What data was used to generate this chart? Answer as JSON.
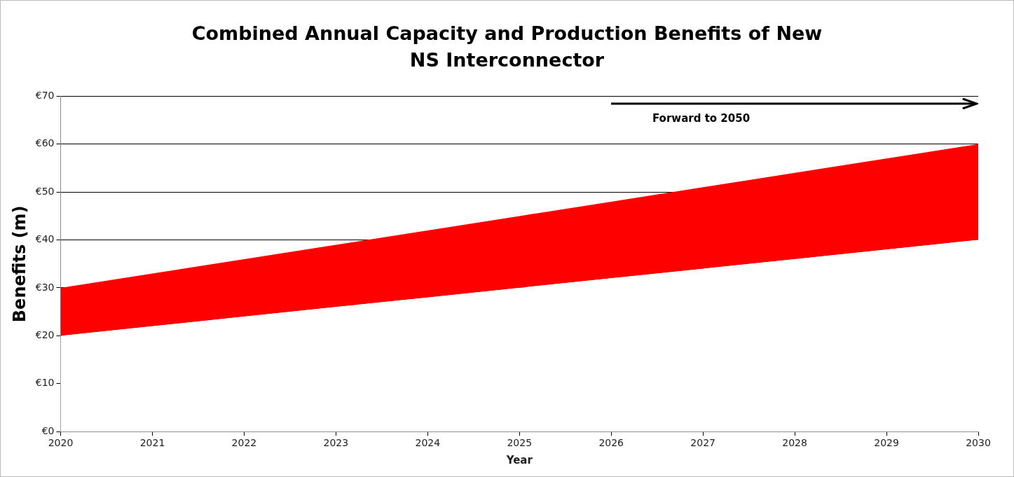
{
  "chart_data": {
    "type": "area",
    "title": "Combined Annual Capacity and Production Benefits of New NS Interconnector",
    "xlabel": "Year",
    "ylabel": "Benefits (m)",
    "x": [
      2020,
      2021,
      2022,
      2023,
      2024,
      2025,
      2026,
      2027,
      2028,
      2029,
      2030
    ],
    "series": [
      {
        "color": "#ffffff",
        "values": [
          20,
          22,
          24,
          26,
          28,
          30,
          32,
          34,
          36,
          38,
          40
        ]
      },
      {
        "color": "#ff0000",
        "values": [
          10,
          11,
          12,
          13,
          14,
          15,
          16,
          17,
          18,
          19,
          20
        ]
      }
    ],
    "xlim": [
      2020,
      2030
    ],
    "xticks": [
      2020,
      2021,
      2022,
      2023,
      2024,
      2025,
      2026,
      2027,
      2028,
      2029,
      2030
    ],
    "ylim": [
      0,
      70
    ],
    "yticks": [
      {
        "value": 0,
        "label": "€0"
      },
      {
        "value": 10,
        "label": "€10"
      },
      {
        "value": 20,
        "label": "€20"
      },
      {
        "value": 30,
        "label": "€30"
      },
      {
        "value": 40,
        "label": "€40"
      },
      {
        "value": 50,
        "label": "€50"
      },
      {
        "value": 60,
        "label": "€60"
      },
      {
        "value": 70,
        "label": "€70"
      }
    ],
    "stacked": true,
    "grid": "y",
    "legend": false,
    "annotations": [
      "Forward to 2050"
    ]
  }
}
